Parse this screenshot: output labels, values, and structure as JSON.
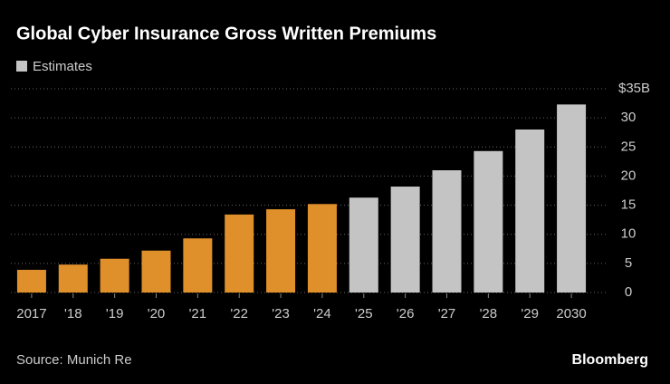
{
  "chart_data": {
    "type": "bar",
    "title": "Global Cyber Insurance Gross Written Premiums",
    "categories": [
      "2017",
      "'18",
      "'19",
      "'20",
      "'21",
      "'22",
      "'23",
      "'24",
      "'25",
      "'26",
      "'27",
      "'28",
      "'29",
      "2030"
    ],
    "series": [
      {
        "color": "#e0902a",
        "values": [
          3.9,
          4.8,
          5.8,
          7.2,
          9.3,
          13.4,
          14.3,
          15.2,
          null,
          null,
          null,
          null,
          null,
          null
        ]
      },
      {
        "name": "Estimates",
        "color": "#c4c4c4",
        "values": [
          null,
          null,
          null,
          null,
          null,
          null,
          null,
          null,
          16.3,
          18.2,
          21.0,
          24.3,
          28.0,
          32.3
        ]
      }
    ],
    "ylim": [
      0,
      35
    ],
    "yticks": [
      0,
      5,
      10,
      15,
      20,
      25,
      30,
      {
        "value": 35,
        "label": "$35B"
      }
    ],
    "grid": true,
    "source": "Source: Munich Re",
    "brand": "Bloomberg"
  }
}
